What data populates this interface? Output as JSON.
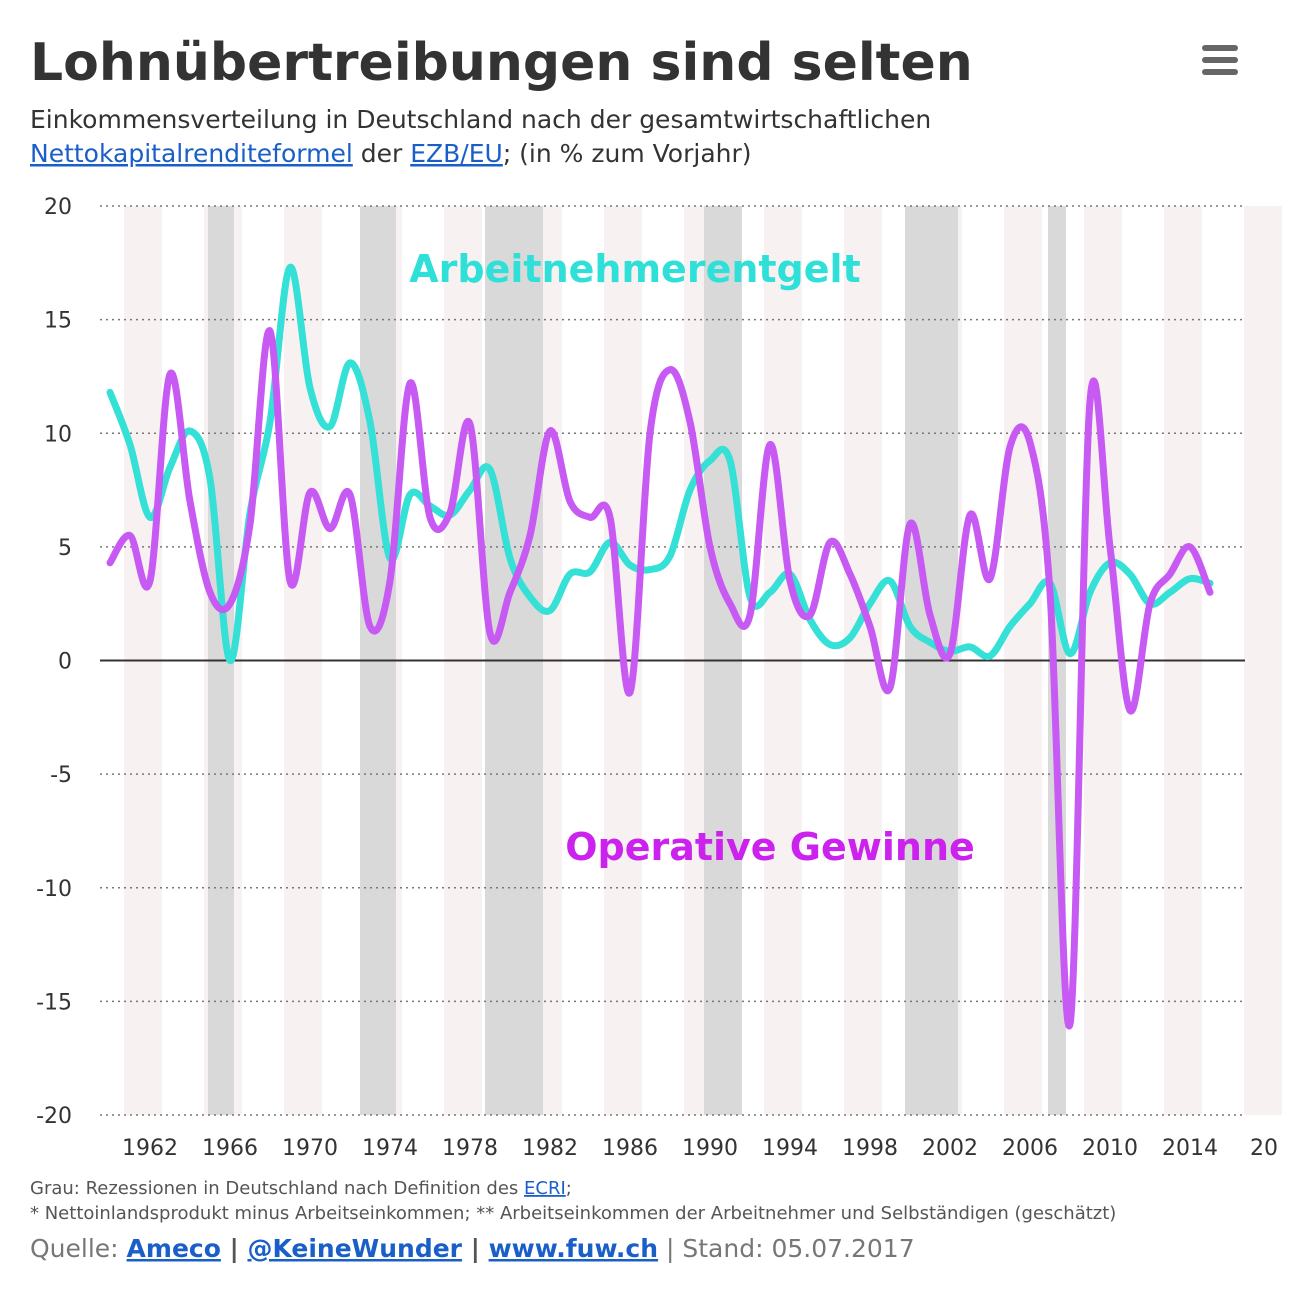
{
  "header": {
    "title": "Lohnübertreibungen sind selten",
    "subtitle_line1": "Einkommensverteilung in Deutschland nach der gesamtwirtschaftlichen",
    "subtitle_link1": "Nettokapitalrenditeformel",
    "subtitle_mid": " der ",
    "subtitle_link2": "EZB/EU",
    "subtitle_end": "; (in % zum Vorjahr)"
  },
  "chart_data": {
    "type": "line",
    "x": [
      1960,
      1961,
      1962,
      1963,
      1964,
      1965,
      1966,
      1967,
      1968,
      1969,
      1970,
      1971,
      1972,
      1973,
      1974,
      1975,
      1976,
      1977,
      1978,
      1979,
      1980,
      1981,
      1982,
      1983,
      1984,
      1985,
      1986,
      1987,
      1988,
      1989,
      1990,
      1991,
      1992,
      1993,
      1994,
      1995,
      1996,
      1997,
      1998,
      1999,
      2000,
      2001,
      2002,
      2003,
      2004,
      2005,
      2006,
      2007,
      2008,
      2009,
      2010,
      2011,
      2012,
      2013,
      2014,
      2015
    ],
    "series": [
      {
        "name": "Arbeitnehmerentgelt",
        "color": "#35e0d6",
        "values": [
          11.8,
          9.5,
          6.3,
          8.5,
          10.1,
          8.0,
          0.0,
          6.5,
          10.5,
          17.3,
          12.0,
          10.3,
          13.1,
          10.5,
          4.5,
          7.3,
          6.8,
          6.4,
          7.5,
          8.4,
          4.5,
          2.8,
          2.2,
          3.8,
          3.9,
          5.2,
          4.2,
          4.0,
          4.6,
          7.5,
          8.8,
          8.8,
          2.8,
          3.0,
          3.8,
          1.8,
          0.7,
          1.0,
          2.5,
          3.5,
          1.5,
          0.8,
          0.4,
          0.6,
          0.2,
          1.5,
          2.5,
          3.4,
          0.3,
          3.0,
          4.3,
          3.8,
          2.5,
          3.0,
          3.6,
          3.4
        ]
      },
      {
        "name": "Operative Gewinne",
        "color": "#c75af2",
        "values": [
          4.3,
          5.5,
          3.5,
          12.6,
          7.0,
          3.0,
          2.5,
          6.0,
          14.5,
          3.5,
          7.4,
          5.8,
          7.3,
          1.5,
          3.5,
          12.2,
          6.3,
          6.5,
          10.4,
          1.2,
          3.0,
          5.5,
          10.1,
          7.0,
          6.3,
          6.3,
          -1.4,
          10.0,
          12.8,
          10.5,
          5.0,
          2.5,
          2.0,
          9.5,
          3.5,
          2.0,
          5.2,
          3.8,
          1.5,
          -1.2,
          6.0,
          2.0,
          0.3,
          6.4,
          3.6,
          9.4,
          9.6,
          3.0,
          -16.0,
          11.4,
          5.0,
          -2.2,
          2.5,
          3.8,
          5.0,
          3.0
        ]
      }
    ],
    "annotations": [
      {
        "text": "Arbeitnehmerentgelt",
        "color": "#2fe0d8"
      },
      {
        "text": "Operative Gewinne",
        "color": "#cc22ee"
      }
    ],
    "recessions": [
      [
        1964.9,
        1966.2
      ],
      [
        1972.5,
        1974.3
      ],
      [
        1978.75,
        1981.65
      ],
      [
        1989.7,
        1991.6
      ],
      [
        1999.75,
        2002.4
      ],
      [
        2006.9,
        2007.8
      ]
    ],
    "recession_color": "#d9d9d9",
    "xlim": [
      1959.5,
      2016.75
    ],
    "xticks": [
      1962,
      1966,
      1970,
      1974,
      1978,
      1982,
      1986,
      1990,
      1994,
      1998,
      2002,
      2006,
      2010,
      2014,
      {
        "value": 2018,
        "label": "20"
      }
    ],
    "ylim": [
      -20,
      20
    ],
    "yticks": [
      20,
      15,
      10,
      5,
      0,
      -5,
      -10,
      -15,
      -20
    ],
    "grid": true
  },
  "footer": {
    "note_start": "Grau: Rezessionen in Deutschland nach Definition des ",
    "note_link": "ECRI",
    "note_end": ";",
    "note2": "* Nettoinlandsprodukt minus Arbeitseinkommen; ** Arbeitseinkommen der Arbeitnehmer und Selbständigen (geschätzt)",
    "source_label": "Quelle: ",
    "source1": "Ameco",
    "sep1": " | ",
    "source2": "@KeineWunder",
    "sep2": " | ",
    "source3": "www.fuw.ch",
    "stand": " | Stand: 05.07.2017"
  }
}
